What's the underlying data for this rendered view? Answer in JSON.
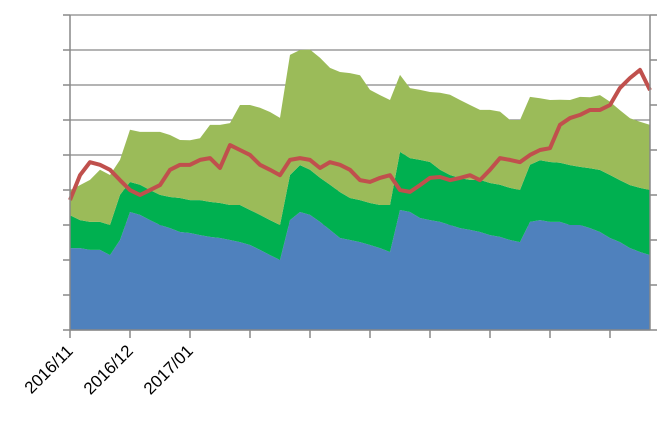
{
  "chart_data": {
    "type": "area",
    "categories": [
      "2016/11",
      null,
      null,
      null,
      null,
      null,
      "2016/12",
      null,
      null,
      null,
      null,
      null,
      "2017/01",
      null,
      null,
      null,
      null,
      null,
      null,
      null,
      null,
      null,
      null,
      null,
      null,
      null,
      null,
      null,
      null,
      null,
      null,
      null,
      null,
      null,
      null,
      null,
      null,
      null,
      null,
      null,
      null,
      null,
      null,
      null,
      null,
      null,
      null,
      null,
      null,
      null,
      null,
      null,
      null,
      null,
      null,
      null,
      null,
      null,
      null
    ],
    "ylim": [
      0,
      9
    ],
    "yticks": [
      0,
      1,
      2,
      3,
      4,
      5,
      6,
      7,
      8,
      9
    ],
    "y2lim": [
      0,
      7
    ],
    "y2ticks": [
      0,
      1,
      2,
      3,
      4,
      5,
      6,
      7
    ],
    "grid": true,
    "series": [
      {
        "color": "#4f81bd",
        "values": [
          2.34,
          2.34,
          2.29,
          2.29,
          2.14,
          2.57,
          3.37,
          3.29,
          3.14,
          3.0,
          2.91,
          2.8,
          2.77,
          2.71,
          2.66,
          2.63,
          2.57,
          2.51,
          2.43,
          2.29,
          2.14,
          2.0,
          3.14,
          3.37,
          3.29,
          3.09,
          2.86,
          2.63,
          2.57,
          2.51,
          2.43,
          2.34,
          2.23,
          3.43,
          3.37,
          3.2,
          3.14,
          3.09,
          3.0,
          2.91,
          2.86,
          2.8,
          2.71,
          2.66,
          2.57,
          2.51,
          3.09,
          3.14,
          3.09,
          3.09,
          3.0,
          3.0,
          2.91,
          2.8,
          2.63,
          2.51,
          2.34,
          2.23,
          2.14
        ]
      },
      {
        "color": "#00b050",
        "values": [
          0.94,
          0.8,
          0.8,
          0.8,
          0.86,
          1.29,
          0.86,
          0.86,
          0.86,
          0.86,
          0.89,
          0.97,
          0.94,
          1.0,
          1.0,
          1.0,
          1.0,
          1.06,
          1.0,
          1.0,
          1.0,
          1.0,
          1.29,
          1.34,
          1.29,
          1.26,
          1.29,
          1.31,
          1.2,
          1.2,
          1.2,
          1.23,
          1.34,
          1.66,
          1.54,
          1.66,
          1.66,
          1.49,
          1.43,
          1.43,
          1.43,
          1.49,
          1.49,
          1.49,
          1.49,
          1.49,
          1.63,
          1.71,
          1.71,
          1.69,
          1.71,
          1.66,
          1.71,
          1.77,
          1.8,
          1.77,
          1.8,
          1.83,
          1.86
        ]
      },
      {
        "color": "#9bbb59",
        "values": [
          0.71,
          1.0,
          1.2,
          1.49,
          1.43,
          1.0,
          1.49,
          1.51,
          1.66,
          1.8,
          1.77,
          1.66,
          1.71,
          1.77,
          2.2,
          2.23,
          2.34,
          2.86,
          3.0,
          3.06,
          3.09,
          3.06,
          3.43,
          3.29,
          3.43,
          3.43,
          3.34,
          3.43,
          3.57,
          3.57,
          3.23,
          3.14,
          3.0,
          2.2,
          2.0,
          2.0,
          2.0,
          2.2,
          2.29,
          2.23,
          2.14,
          2.0,
          2.09,
          2.09,
          1.94,
          2.0,
          1.94,
          1.77,
          1.77,
          1.8,
          1.86,
          2.0,
          2.03,
          2.14,
          2.09,
          2.0,
          1.91,
          1.89,
          1.86
        ]
      },
      {
        "color": "#c0504d",
        "type": "line",
        "axis": "y2",
        "values": [
          2.89,
          3.44,
          3.73,
          3.67,
          3.56,
          3.33,
          3.11,
          3.0,
          3.11,
          3.22,
          3.56,
          3.67,
          3.67,
          3.78,
          3.82,
          3.6,
          4.11,
          4.0,
          3.89,
          3.67,
          3.56,
          3.44,
          3.78,
          3.82,
          3.78,
          3.6,
          3.73,
          3.67,
          3.56,
          3.33,
          3.29,
          3.38,
          3.44,
          3.11,
          3.07,
          3.22,
          3.38,
          3.4,
          3.33,
          3.38,
          3.44,
          3.33,
          3.56,
          3.82,
          3.78,
          3.73,
          3.89,
          4.0,
          4.04,
          4.56,
          4.71,
          4.78,
          4.89,
          4.89,
          5.0,
          5.38,
          5.6,
          5.78,
          5.33
        ]
      }
    ]
  }
}
